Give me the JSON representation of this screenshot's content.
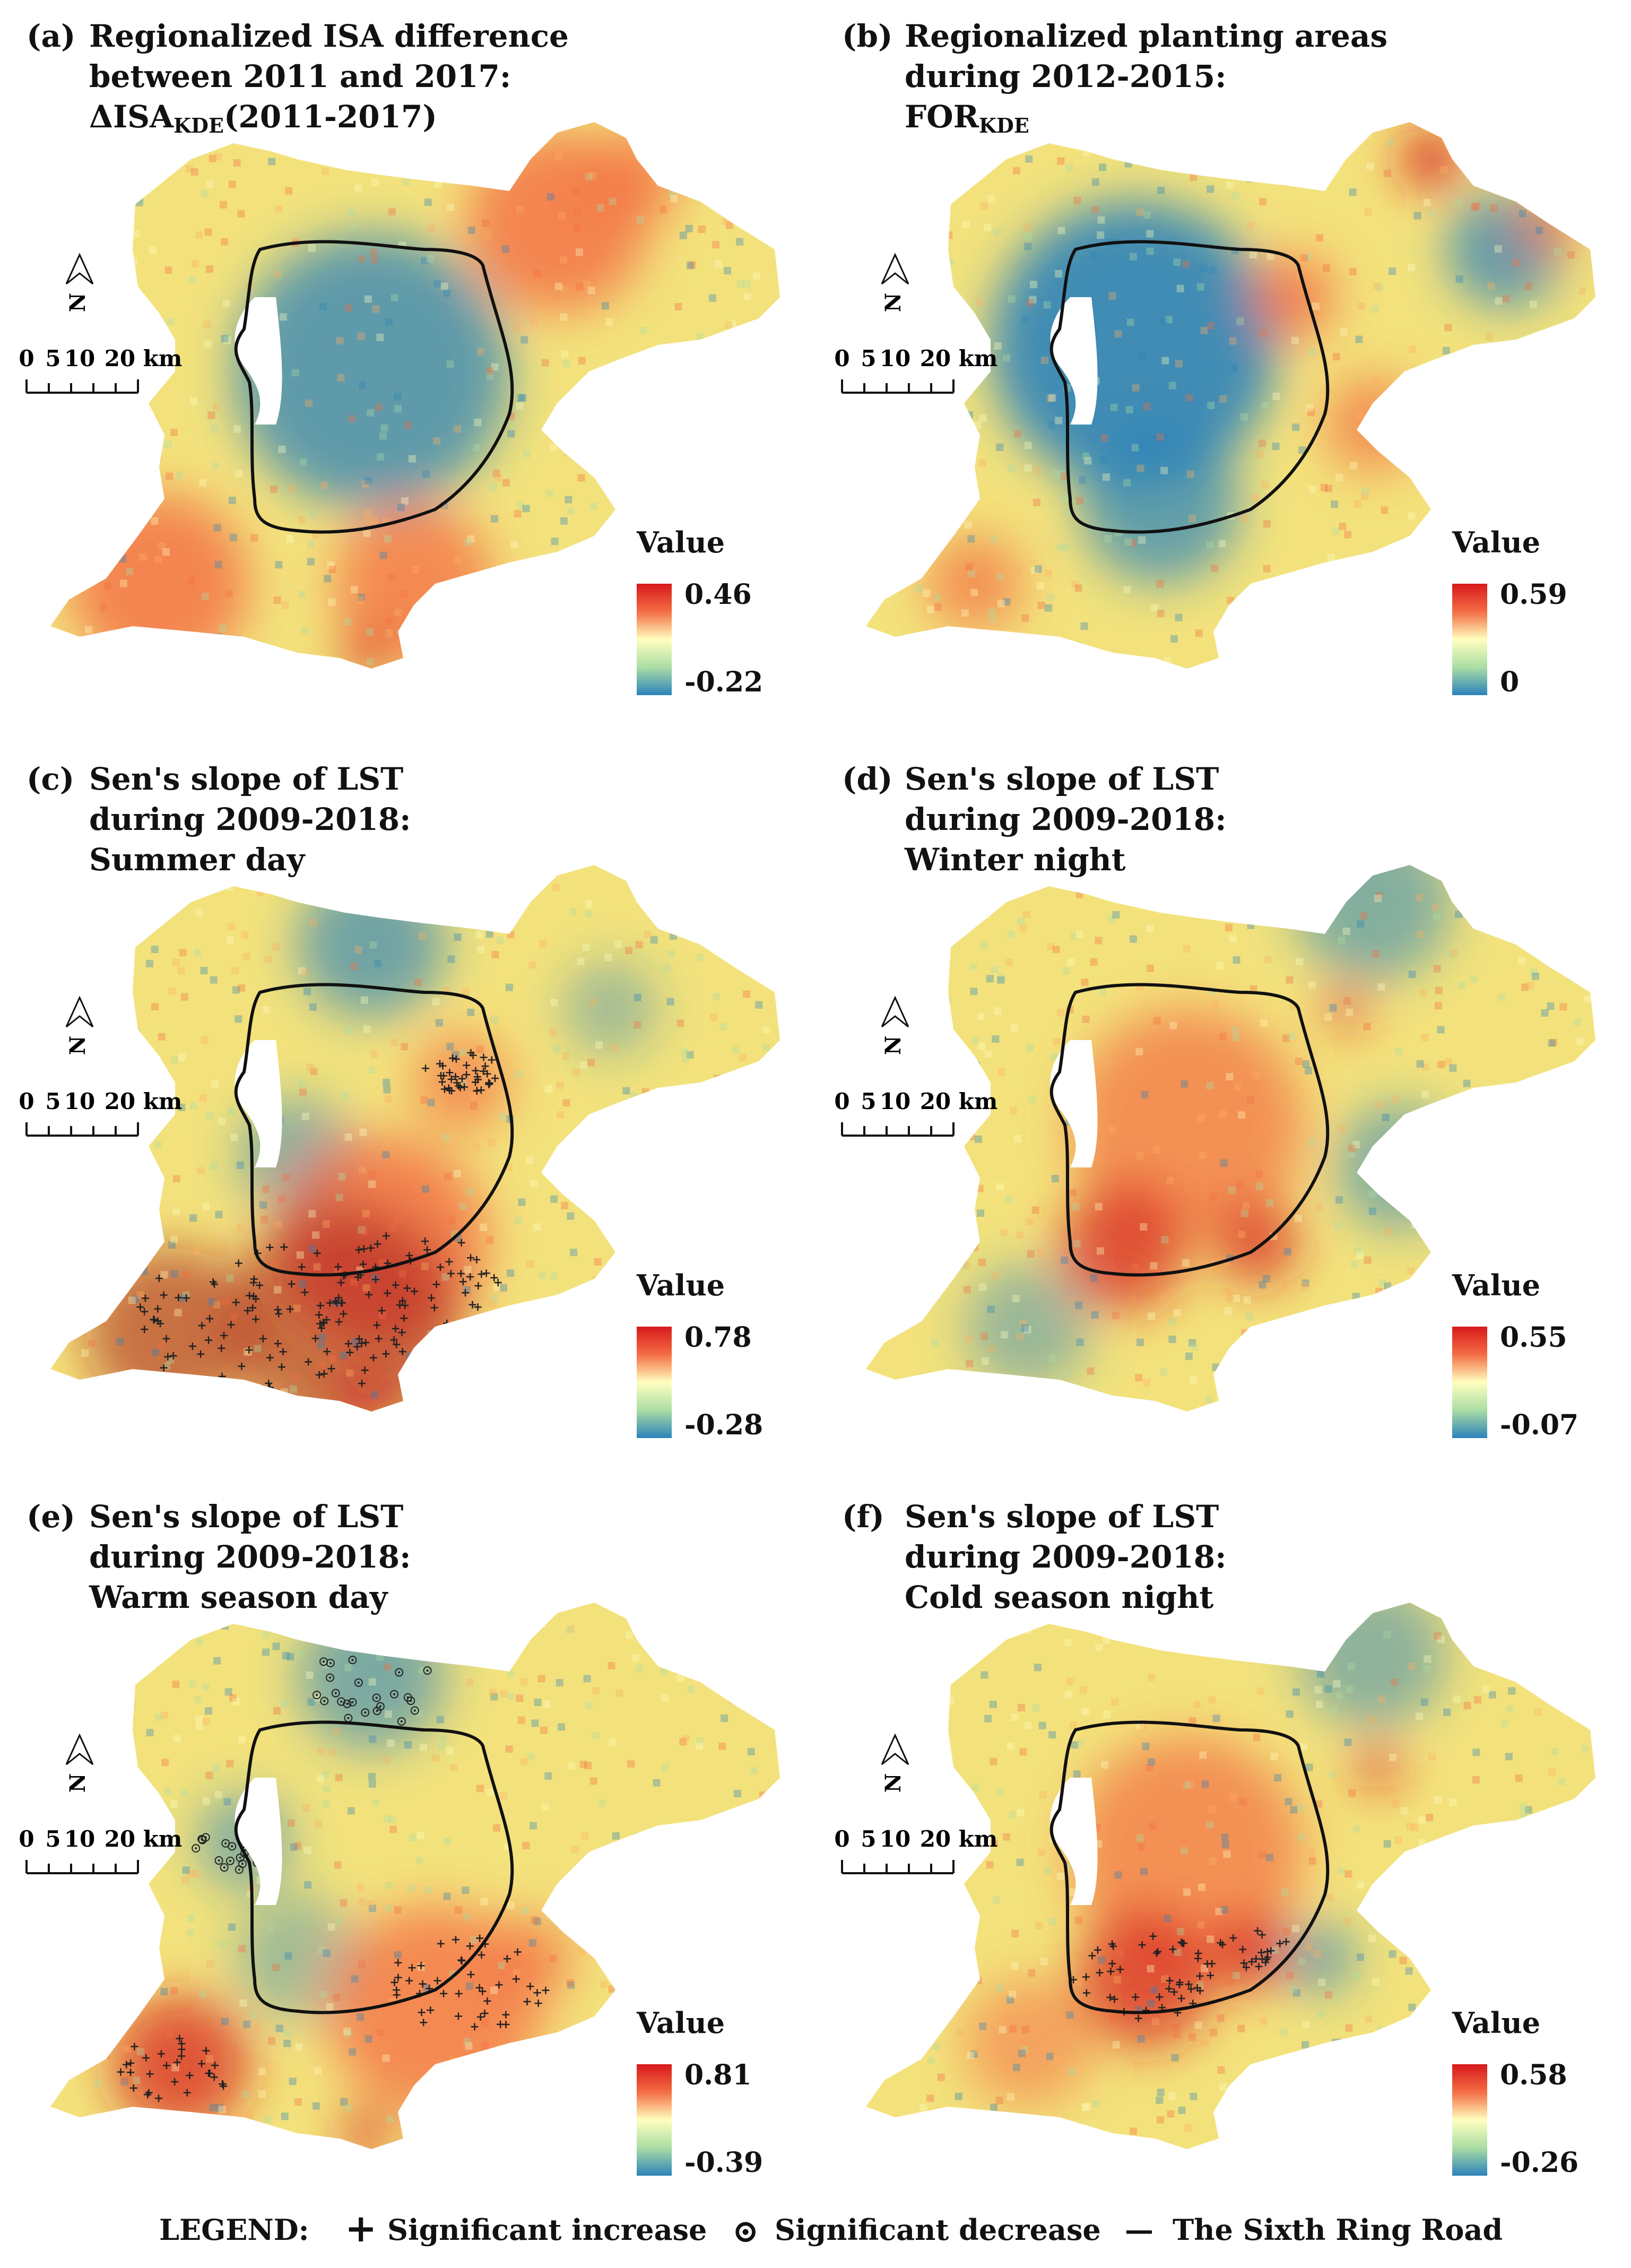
{
  "panels": [
    {
      "tag": "(a)",
      "lines": [
        "Regionalized ISA difference",
        "between 2011 and 2017:"
      ],
      "line3": {
        "pre": "ΔISA",
        "sub": "KDE",
        "post": "(2011-2017)"
      },
      "value_label": "Value",
      "max": "0.46",
      "min": "-0.22",
      "palette": "a"
    },
    {
      "tag": "(b)",
      "lines": [
        "Regionalized planting areas",
        "during 2012-2015:"
      ],
      "line3": {
        "pre": "FOR",
        "sub": "KDE",
        "post": ""
      },
      "value_label": "Value",
      "max": "0.59",
      "min": "0",
      "palette": "b"
    },
    {
      "tag": "(c)",
      "lines": [
        "Sen's slope of LST",
        "during 2009-2018:",
        "Summer day"
      ],
      "value_label": "Value",
      "max": "0.78",
      "min": "-0.28",
      "palette": "c"
    },
    {
      "tag": "(d)",
      "lines": [
        "Sen's slope of LST",
        "during 2009-2018:",
        "Winter night"
      ],
      "value_label": "Value",
      "max": "0.55",
      "min": "-0.07",
      "palette": "d"
    },
    {
      "tag": "(e)",
      "lines": [
        "Sen's slope of LST",
        "during 2009-2018:",
        "Warm season day"
      ],
      "value_label": "Value",
      "max": "0.81",
      "min": "-0.39",
      "palette": "e"
    },
    {
      "tag": "(f)",
      "lines": [
        "Sen's slope of LST",
        "during 2009-2018:",
        "Cold season night"
      ],
      "value_label": "Value",
      "max": "0.58",
      "min": "-0.26",
      "palette": "f"
    }
  ],
  "scale_bar": {
    "label_0": "0",
    "label_5": "5",
    "label_10": "10",
    "label_20": "20 km",
    "north": "N"
  },
  "legend": {
    "title": "LEGEND:",
    "increase_symbol": "+",
    "increase": "Significant increase",
    "decrease_symbol": "⊙",
    "decrease": "Significant decrease",
    "ring_symbol": "—",
    "ring": "The Sixth Ring Road"
  },
  "colors": {
    "red": "#d7191c",
    "orange": "#f46d43",
    "yellow": "#ffffbf",
    "green": "#abdda4",
    "blue": "#2b83ba"
  }
}
